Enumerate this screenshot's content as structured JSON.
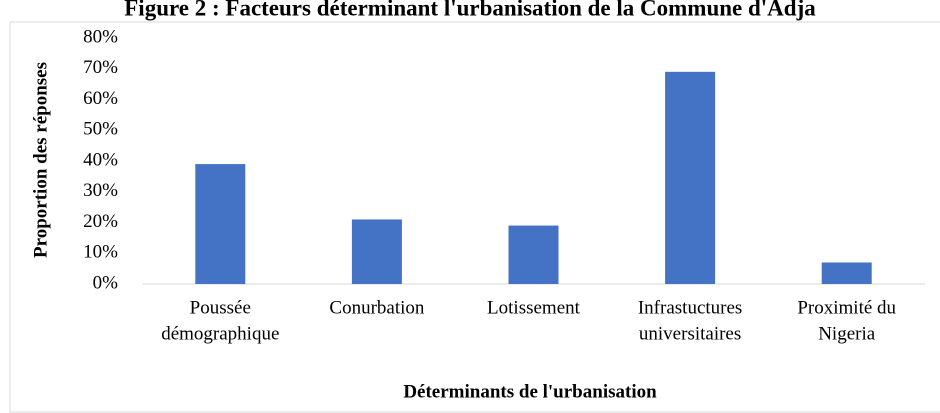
{
  "chart_data": {
    "type": "bar",
    "title": "Figure 2 : Facteurs déterminant l'urbanisation de la Commune d'Adja",
    "x_label": "Déterminants de l'urbanisation",
    "y_label": "Proportion des réponses",
    "categories": [
      [
        "Poussée",
        "démographique"
      ],
      [
        "Conurbation"
      ],
      [
        "Lotissement"
      ],
      [
        "Infrastuctures",
        "universitaires"
      ],
      [
        "Proximité du",
        "Nigeria"
      ]
    ],
    "values": [
      39,
      21,
      19,
      69,
      7
    ],
    "color": "#4472c4",
    "ylim": [
      0,
      80
    ],
    "yticks": [
      {
        "value": 0,
        "label": "0%"
      },
      {
        "value": 10,
        "label": "10%"
      },
      {
        "value": 20,
        "label": "20%"
      },
      {
        "value": 30,
        "label": "30%"
      },
      {
        "value": 40,
        "label": "40%"
      },
      {
        "value": 50,
        "label": "50%"
      },
      {
        "value": 60,
        "label": "60%"
      },
      {
        "value": 70,
        "label": "70%"
      },
      {
        "value": 80,
        "label": "80%"
      }
    ],
    "grid": false
  }
}
